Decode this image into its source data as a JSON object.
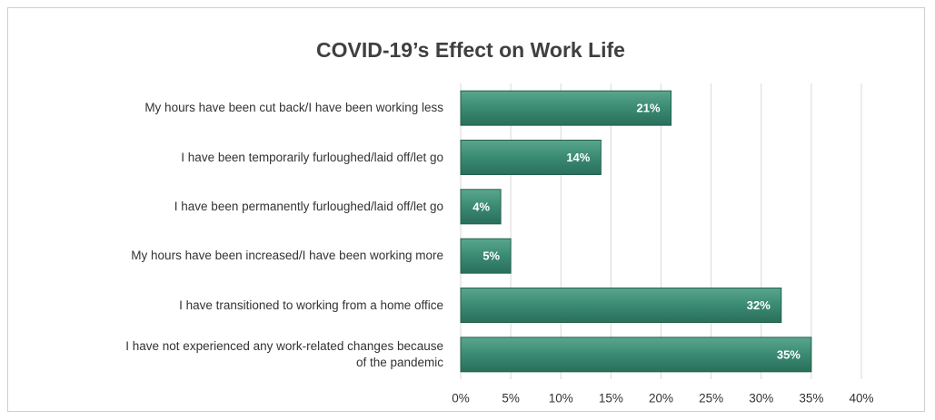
{
  "chart_data": {
    "type": "barh",
    "title": "COVID-19’s Effect on Work Life",
    "categories": [
      "My hours have been cut back/I have been working less",
      "I have been temporarily furloughed/laid off/let go",
      "I have been permanently furloughed/laid off/let go",
      "My hours have been increased/I have been working more",
      "I have transitioned to working from a home office",
      "I have not experienced any work-related changes because\nof the pandemic"
    ],
    "values": [
      21,
      14,
      4,
      5,
      32,
      35
    ],
    "value_labels": [
      "21%",
      "14%",
      "4%",
      "5%",
      "32%",
      "35%"
    ],
    "color": "#3a8a72",
    "xlim": [
      0,
      40
    ],
    "xticks": [
      {
        "value": 0,
        "label": "0%"
      },
      {
        "value": 5,
        "label": "5%"
      },
      {
        "value": 10,
        "label": "10%"
      },
      {
        "value": 15,
        "label": "15%"
      },
      {
        "value": 20,
        "label": "20%"
      },
      {
        "value": 25,
        "label": "25%"
      },
      {
        "value": 30,
        "label": "30%"
      },
      {
        "value": 35,
        "label": "35%"
      },
      {
        "value": 40,
        "label": "40%"
      }
    ],
    "grid": true
  }
}
